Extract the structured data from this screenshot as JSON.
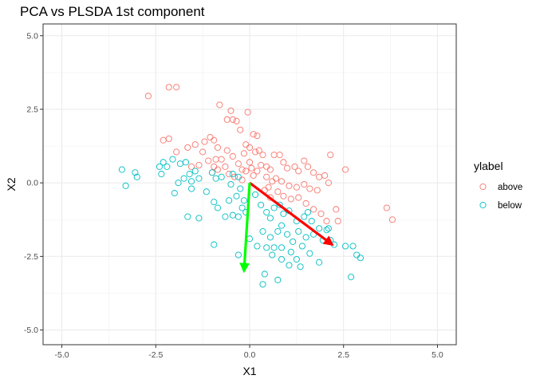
{
  "chart_data": {
    "type": "scatter",
    "title": "PCA vs PLSDA 1st component",
    "xlabel": "X1",
    "ylabel": "X2",
    "xlim": [
      -5.5,
      5.5
    ],
    "ylim": [
      -5.5,
      5.4
    ],
    "xticks": [
      -5.0,
      -2.5,
      0.0,
      2.5,
      5.0
    ],
    "yticks": [
      -5.0,
      -2.5,
      0.0,
      2.5,
      5.0
    ],
    "xtick_labels": [
      "-5.0",
      "-2.5",
      "0.0",
      "2.5",
      "5.0"
    ],
    "ytick_labels": [
      "-5.0",
      "-2.5",
      "0.0",
      "2.5",
      "5.0"
    ],
    "grid": true,
    "legend": {
      "title": "ylabel",
      "position": "right",
      "entries": [
        "above",
        "below"
      ]
    },
    "series": [
      {
        "name": "above",
        "color": "#F8766D",
        "marker": "open-circle",
        "points": [
          [
            -2.7,
            2.95
          ],
          [
            -2.15,
            3.25
          ],
          [
            -1.95,
            3.25
          ],
          [
            -2.3,
            1.45
          ],
          [
            -2.15,
            1.5
          ],
          [
            -1.95,
            1.05
          ],
          [
            -1.65,
            1.2
          ],
          [
            -1.45,
            1.3
          ],
          [
            -1.25,
            1.05
          ],
          [
            -1.05,
            1.55
          ],
          [
            -0.95,
            1.45
          ],
          [
            -0.85,
            1.2
          ],
          [
            -0.8,
            2.65
          ],
          [
            -0.6,
            2.15
          ],
          [
            -0.5,
            2.45
          ],
          [
            -0.45,
            2.15
          ],
          [
            -0.35,
            2.1
          ],
          [
            -0.25,
            1.8
          ],
          [
            -0.05,
            2.4
          ],
          [
            0.1,
            1.65
          ],
          [
            0.2,
            1.6
          ],
          [
            -0.1,
            1.3
          ],
          [
            0.0,
            1.2
          ],
          [
            0.15,
            1.05
          ],
          [
            0.25,
            1.1
          ],
          [
            0.35,
            0.95
          ],
          [
            -0.6,
            1.1
          ],
          [
            -0.75,
            0.8
          ],
          [
            -0.9,
            0.8
          ],
          [
            -1.1,
            0.75
          ],
          [
            -1.35,
            0.6
          ],
          [
            -1.55,
            0.55
          ],
          [
            -0.95,
            0.55
          ],
          [
            -0.65,
            0.55
          ],
          [
            -0.45,
            0.9
          ],
          [
            -0.3,
            0.65
          ],
          [
            -0.2,
            0.45
          ],
          [
            -0.1,
            0.4
          ],
          [
            0.05,
            0.5
          ],
          [
            0.1,
            0.25
          ],
          [
            0.2,
            0.4
          ],
          [
            0.3,
            0.6
          ],
          [
            0.45,
            0.55
          ],
          [
            0.55,
            0.45
          ],
          [
            0.65,
            0.95
          ],
          [
            0.8,
            0.95
          ],
          [
            0.9,
            0.7
          ],
          [
            1.0,
            0.5
          ],
          [
            1.2,
            0.55
          ],
          [
            1.3,
            0.4
          ],
          [
            1.45,
            0.75
          ],
          [
            1.55,
            0.55
          ],
          [
            1.7,
            0.35
          ],
          [
            1.85,
            0.2
          ],
          [
            2.0,
            0.25
          ],
          [
            2.1,
            0.0
          ],
          [
            2.15,
            0.95
          ],
          [
            2.55,
            0.45
          ],
          [
            0.45,
            0.2
          ],
          [
            0.6,
            0.05
          ],
          [
            0.7,
            0.15
          ],
          [
            0.85,
            0.05
          ],
          [
            1.05,
            -0.1
          ],
          [
            1.25,
            -0.15
          ],
          [
            1.45,
            -0.05
          ],
          [
            1.6,
            -0.2
          ],
          [
            1.8,
            -0.25
          ],
          [
            0.5,
            -0.15
          ],
          [
            0.75,
            -0.3
          ],
          [
            0.9,
            -0.45
          ],
          [
            1.1,
            -0.55
          ],
          [
            1.3,
            -0.5
          ],
          [
            1.5,
            -0.7
          ],
          [
            1.7,
            -0.9
          ],
          [
            1.9,
            -1.05
          ],
          [
            2.05,
            -1.3
          ],
          [
            2.3,
            -0.9
          ],
          [
            2.35,
            -1.3
          ],
          [
            0.4,
            -0.25
          ],
          [
            0.55,
            -0.5
          ],
          [
            -0.2,
            0.1
          ],
          [
            -0.4,
            0.2
          ],
          [
            -0.55,
            0.3
          ],
          [
            -0.85,
            0.45
          ],
          [
            -1.0,
            0.35
          ],
          [
            3.65,
            -0.85
          ],
          [
            3.8,
            -1.25
          ],
          [
            -0.15,
            1.0
          ],
          [
            0.0,
            0.7
          ],
          [
            -1.2,
            1.4
          ]
        ]
      },
      {
        "name": "below",
        "color": "#00BFC4",
        "marker": "open-circle",
        "points": [
          [
            -3.4,
            0.45
          ],
          [
            -3.3,
            -0.1
          ],
          [
            -3.05,
            0.35
          ],
          [
            -3.0,
            0.2
          ],
          [
            -2.4,
            0.55
          ],
          [
            -2.3,
            0.7
          ],
          [
            -2.2,
            0.55
          ],
          [
            -2.35,
            0.3
          ],
          [
            -2.05,
            0.8
          ],
          [
            -1.85,
            0.65
          ],
          [
            -1.7,
            0.7
          ],
          [
            -1.6,
            0.3
          ],
          [
            -1.45,
            0.4
          ],
          [
            -1.35,
            0.15
          ],
          [
            -1.75,
            0.15
          ],
          [
            -1.9,
            0.0
          ],
          [
            -1.55,
            0.05
          ],
          [
            -2.0,
            -0.35
          ],
          [
            -1.65,
            -1.15
          ],
          [
            -1.35,
            -1.2
          ],
          [
            -1.55,
            -0.2
          ],
          [
            -1.0,
            0.35
          ],
          [
            -0.9,
            0.15
          ],
          [
            -0.75,
            0.2
          ],
          [
            -0.45,
            0.3
          ],
          [
            -0.5,
            -0.05
          ],
          [
            -0.3,
            0.2
          ],
          [
            -1.15,
            -0.3
          ],
          [
            -0.95,
            -0.65
          ],
          [
            -0.85,
            -0.85
          ],
          [
            -0.55,
            -0.6
          ],
          [
            -0.35,
            -0.45
          ],
          [
            -0.15,
            -0.6
          ],
          [
            -0.2,
            -0.85
          ],
          [
            -0.65,
            -1.15
          ],
          [
            -0.45,
            -1.1
          ],
          [
            -0.3,
            -1.15
          ],
          [
            -0.1,
            -1.0
          ],
          [
            0.15,
            -0.4
          ],
          [
            0.3,
            -0.75
          ],
          [
            0.45,
            -1.0
          ],
          [
            0.55,
            -1.2
          ],
          [
            0.65,
            -0.85
          ],
          [
            0.8,
            -0.75
          ],
          [
            0.9,
            -1.05
          ],
          [
            1.05,
            -0.95
          ],
          [
            1.25,
            -1.3
          ],
          [
            1.45,
            -1.15
          ],
          [
            1.65,
            -1.3
          ],
          [
            1.55,
            -1.0
          ],
          [
            0.85,
            -1.45
          ],
          [
            0.75,
            -1.65
          ],
          [
            1.0,
            -1.75
          ],
          [
            1.3,
            -1.65
          ],
          [
            1.5,
            -1.85
          ],
          [
            1.7,
            -1.75
          ],
          [
            1.95,
            -1.95
          ],
          [
            2.05,
            -1.6
          ],
          [
            2.15,
            -1.95
          ],
          [
            2.25,
            -2.1
          ],
          [
            2.55,
            -2.15
          ],
          [
            2.75,
            -2.15
          ],
          [
            2.85,
            -2.45
          ],
          [
            2.95,
            -2.55
          ],
          [
            2.7,
            -3.2
          ],
          [
            0.0,
            -1.9
          ],
          [
            0.2,
            -2.15
          ],
          [
            0.45,
            -2.2
          ],
          [
            0.65,
            -2.2
          ],
          [
            0.85,
            -2.2
          ],
          [
            1.1,
            -2.35
          ],
          [
            1.25,
            -2.6
          ],
          [
            1.35,
            -2.85
          ],
          [
            1.4,
            -2.15
          ],
          [
            1.6,
            -2.4
          ],
          [
            1.85,
            -2.7
          ],
          [
            0.6,
            -2.45
          ],
          [
            0.85,
            -2.6
          ],
          [
            1.05,
            -2.8
          ],
          [
            -0.3,
            -2.45
          ],
          [
            0.4,
            -3.1
          ],
          [
            0.75,
            -3.3
          ],
          [
            0.35,
            -3.45
          ],
          [
            -0.95,
            -2.1
          ],
          [
            -0.25,
            -0.2
          ],
          [
            0.35,
            -1.65
          ],
          [
            0.55,
            -1.85
          ],
          [
            1.15,
            -2.0
          ],
          [
            1.85,
            -1.55
          ],
          [
            2.1,
            -1.55
          ]
        ]
      }
    ],
    "annotations": [
      {
        "name": "PLSDA component arrow",
        "color": "#FF0000",
        "from": [
          0.0,
          0.0
        ],
        "to": [
          2.2,
          -2.1
        ]
      },
      {
        "name": "PCA component arrow",
        "color": "#00FF00",
        "from": [
          0.0,
          0.0
        ],
        "to": [
          -0.15,
          -3.0
        ]
      }
    ]
  }
}
